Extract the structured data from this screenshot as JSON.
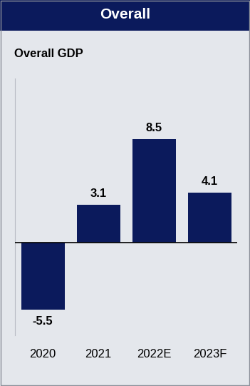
{
  "chart_data": {
    "type": "bar",
    "title": "Overall",
    "subtitle": "Overall GDP",
    "categories": [
      "2020",
      "2021",
      "2022E",
      "2023F"
    ],
    "values": [
      -5.5,
      3.1,
      8.5,
      4.1
    ],
    "color": "#0b1a5c",
    "ylim": [
      -7.6,
      13.5
    ],
    "data_labels": true,
    "tick_labels": "x"
  }
}
